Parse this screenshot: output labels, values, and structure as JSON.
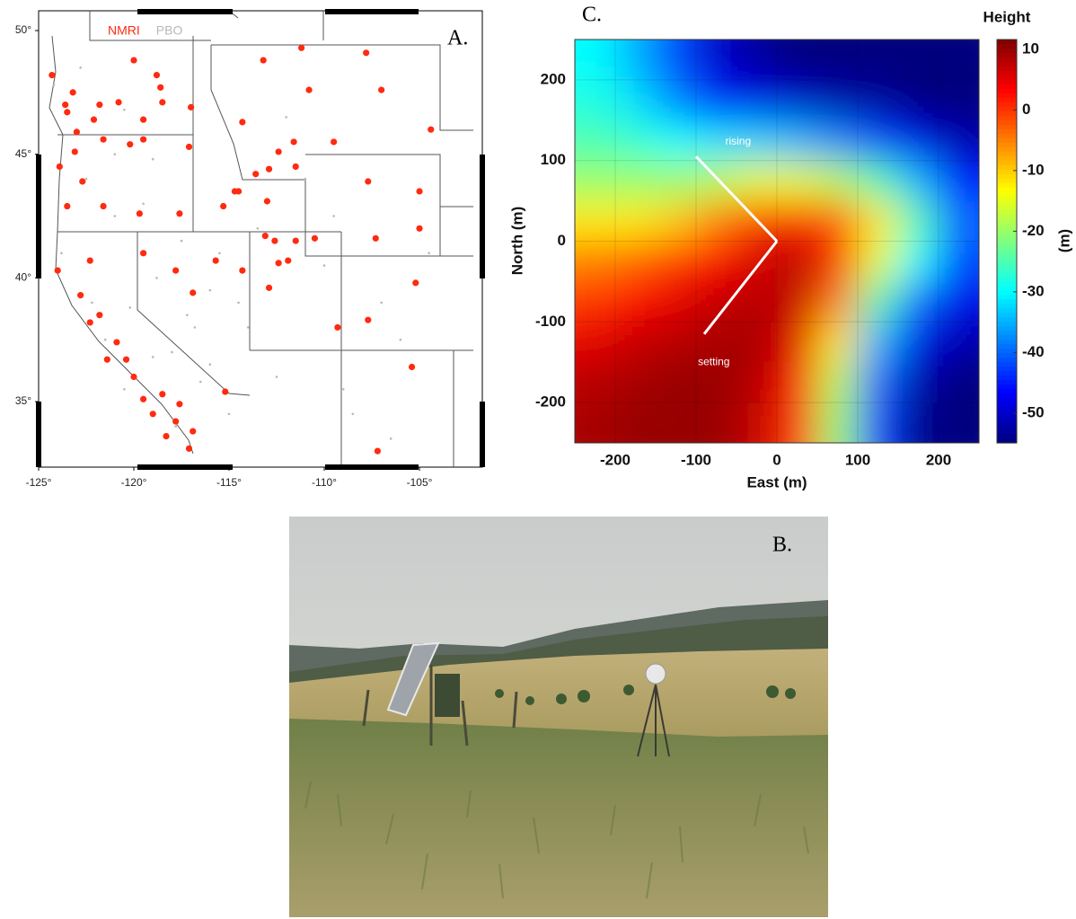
{
  "chart_data": [
    {
      "type": "scatter",
      "panel_label": "A.",
      "xlim": [
        -125,
        -101.7
      ],
      "ylim": [
        32.35,
        50.8
      ],
      "xticks": [
        {
          "value": -125,
          "label": "-125°"
        },
        {
          "value": -120,
          "label": "-120°"
        },
        {
          "value": -115,
          "label": "-115°"
        },
        {
          "value": -110,
          "label": "-110°"
        },
        {
          "value": -105,
          "label": "-105°"
        }
      ],
      "yticks": [
        {
          "value": 50,
          "label": "50°"
        },
        {
          "value": 45,
          "label": "45°"
        },
        {
          "value": 40,
          "label": "40°"
        },
        {
          "value": 35,
          "label": "35°"
        }
      ],
      "legend": "top",
      "series": [
        {
          "name": "NMRI",
          "color": "#ff2a10",
          "x": [
            -124.3,
            -123.6,
            -123.2,
            -123.5,
            -122.1,
            -121.8,
            -120.0,
            -120.8,
            -118.8,
            -118.6,
            -119.5,
            -118.5,
            -117.0,
            -114.3,
            -113.2,
            -111.2,
            -110.8,
            -107.8,
            -107.0,
            -104.4,
            -109.5,
            -111.6,
            -112.4,
            -112.9,
            -113.6,
            -114.5,
            -114.7,
            -113.0,
            -111.5,
            -107.7,
            -105.0,
            -123.0,
            -123.1,
            -121.6,
            -120.2,
            -119.5,
            -117.1,
            -123.9,
            -122.7,
            -123.5,
            -121.6,
            -119.7,
            -117.6,
            -115.3,
            -113.1,
            -112.6,
            -111.5,
            -110.5,
            -107.3,
            -105.0,
            -124.0,
            -122.3,
            -119.5,
            -117.8,
            -116.9,
            -115.7,
            -114.3,
            -112.4,
            -111.9,
            -112.9,
            -105.2,
            -107.7,
            -109.3,
            -121.8,
            -121.4,
            -120.9,
            -120.0,
            -119.5,
            -118.5,
            -117.6,
            -116.9,
            -117.1,
            -118.3,
            -115.2,
            -105.4,
            -107.2,
            -122.8,
            -122.3,
            -120.4,
            -119.0,
            -117.8
          ],
          "values": [
            48.2,
            47.0,
            47.5,
            46.7,
            46.4,
            47.0,
            48.8,
            47.1,
            48.2,
            47.7,
            46.4,
            47.1,
            46.9,
            46.3,
            48.8,
            49.3,
            47.6,
            49.1,
            47.6,
            46.0,
            45.5,
            45.5,
            45.1,
            44.4,
            44.2,
            43.5,
            43.5,
            43.1,
            44.5,
            43.9,
            43.5,
            45.9,
            45.1,
            45.6,
            45.4,
            45.6,
            45.3,
            44.5,
            43.9,
            42.9,
            42.9,
            42.6,
            42.6,
            42.9,
            41.7,
            41.5,
            41.5,
            41.6,
            41.6,
            42.0,
            40.3,
            40.7,
            41.0,
            40.3,
            39.4,
            40.7,
            40.3,
            40.6,
            40.7,
            39.6,
            39.8,
            38.3,
            38.0,
            38.5,
            36.7,
            37.4,
            36.0,
            35.1,
            35.3,
            34.9,
            33.8,
            33.1,
            33.6,
            35.4,
            36.4,
            33.0,
            39.3,
            38.2,
            36.7,
            34.5,
            34.2
          ]
        },
        {
          "name": "PBO",
          "color": "#b8b8b8",
          "x": [
            -124.2,
            -123.0,
            -122.5,
            -121.0,
            -120.5,
            -119.0,
            -117.5,
            -116.0,
            -114.0,
            -112.5,
            -110.0,
            -108.5,
            -106.0,
            -123.8,
            -122.2,
            -121.5,
            -120.2,
            -118.0,
            -116.5,
            -115.0,
            -113.5,
            -111.0,
            -109.0,
            -107.0,
            -104.5,
            -122.8,
            -121.0,
            -119.5,
            -118.8,
            -117.2,
            -116.0,
            -114.5,
            -112.0,
            -109.5,
            -106.5,
            -120.5,
            -119.0,
            -117.8,
            -116.8,
            -115.5
          ],
          "values": [
            47.8,
            46.0,
            44.0,
            42.5,
            46.8,
            44.8,
            41.5,
            39.5,
            38.0,
            36.0,
            40.5,
            34.5,
            37.5,
            41.0,
            39.0,
            37.5,
            38.8,
            37.0,
            35.8,
            34.5,
            42.0,
            44.0,
            35.5,
            39.0,
            41.0,
            48.5,
            45.0,
            43.0,
            40.0,
            38.5,
            36.5,
            39.0,
            46.5,
            42.5,
            33.5,
            35.5,
            36.8,
            34.0,
            38.0,
            41.0
          ]
        }
      ]
    },
    {
      "type": "heatmap",
      "panel_label": "C.",
      "x_label": "East (m)",
      "y_label": "North (m)",
      "colorbar_title": "Height",
      "colorbar_label": "(m)",
      "colormap": "jet",
      "xlim": [
        -250,
        250
      ],
      "ylim": [
        -250,
        250
      ],
      "xticks": [
        -200,
        -100,
        0,
        100,
        200
      ],
      "yticks": [
        -200,
        -100,
        0,
        100,
        200
      ],
      "clim": [
        -54.9,
        11.6
      ],
      "cticks": [
        10,
        0,
        -10,
        -20,
        -30,
        -40,
        -50
      ],
      "x": [
        -225,
        -175,
        -125,
        -75,
        -25,
        25,
        75,
        125,
        175,
        225
      ],
      "y": [
        225,
        175,
        125,
        75,
        25,
        -25,
        -75,
        -125,
        -175,
        -225
      ],
      "values": [
        [
          -30,
          -35,
          -42,
          -50,
          -53,
          -55,
          -55,
          -55,
          -55,
          -55
        ],
        [
          -28,
          -32,
          -38,
          -45,
          -48,
          -50,
          -52,
          -53,
          -55,
          -55
        ],
        [
          -25,
          -27,
          -30,
          -32,
          -33,
          -35,
          -38,
          -42,
          -48,
          -52
        ],
        [
          -20,
          -20,
          -20,
          -18,
          -15,
          -15,
          -18,
          -25,
          -35,
          -45
        ],
        [
          -12,
          -12,
          -10,
          -5,
          0,
          2,
          -2,
          -12,
          -25,
          -40
        ],
        [
          -5,
          -3,
          0,
          3,
          6,
          8,
          0,
          -15,
          -30,
          -42
        ],
        [
          0,
          3,
          5,
          7,
          8,
          7,
          -5,
          -25,
          -40,
          -48
        ],
        [
          5,
          7,
          8,
          9,
          9,
          5,
          -12,
          -35,
          -48,
          -52
        ],
        [
          8,
          9,
          10,
          10,
          8,
          2,
          -18,
          -40,
          -52,
          -55
        ],
        [
          9,
          10,
          10,
          10,
          7,
          0,
          -20,
          -42,
          -54,
          -55
        ]
      ],
      "annotations": [
        {
          "text": "rising",
          "x": [
            0,
            -100
          ],
          "y": [
            0,
            105
          ],
          "text_x": -48,
          "text_y": 123
        },
        {
          "text": "setting",
          "x": [
            0,
            -90
          ],
          "y": [
            0,
            -115
          ],
          "text_x": -78,
          "text_y": -150
        }
      ]
    }
  ],
  "photo": {
    "panel_label": "B."
  }
}
